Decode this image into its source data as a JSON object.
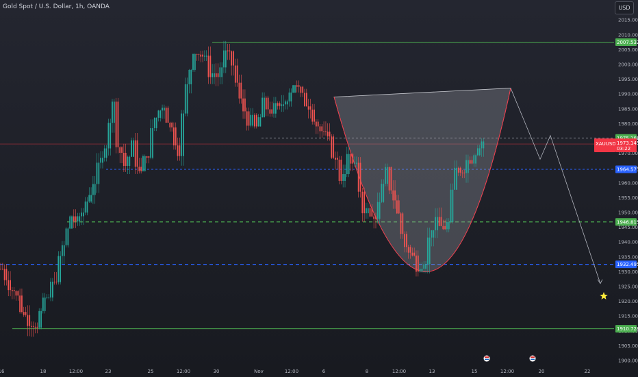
{
  "header": {
    "symbol_title": "Gold Spot / U.S. Dollar, 1h, OANDA",
    "currency_button": "USD"
  },
  "colors": {
    "background": "#1c1e26",
    "candle_up": "#26a69a",
    "candle_down": "#ef5350",
    "green_line": "#4caf50",
    "blue_dash": "#2962ff",
    "green_dash": "#4caf50",
    "red_price": "#f23645",
    "fill_shape": "#9598a1"
  },
  "chart_data": {
    "type": "line",
    "title": "Gold Spot / U.S. Dollar, 1h, OANDA",
    "y_range": [
      1898,
      2016
    ],
    "y_ticks": [
      1900,
      1905,
      1910,
      1915,
      1920,
      1925,
      1930,
      1935,
      1940,
      1945,
      1950,
      1955,
      1960,
      1965,
      1970,
      1975,
      1980,
      1985,
      1990,
      1995,
      2000,
      2005,
      2010,
      2015
    ],
    "x_ticks": [
      "16",
      "18",
      "12:00",
      "23",
      "25",
      "12:00",
      "30",
      "Nov",
      "12:00",
      "6",
      "8",
      "12:00",
      "13",
      "15",
      "12:00",
      "20",
      "22"
    ],
    "price_path": [
      [
        0,
        1931
      ],
      [
        3,
        1924
      ],
      [
        6,
        1915
      ],
      [
        9,
        1913
      ],
      [
        12,
        1921
      ],
      [
        15,
        1933
      ],
      [
        18,
        1949
      ],
      [
        20,
        1946
      ],
      [
        22,
        1954
      ],
      [
        24,
        1961
      ],
      [
        26,
        1967
      ],
      [
        28,
        1982
      ],
      [
        29,
        1986
      ],
      [
        30,
        1975
      ],
      [
        32,
        1966
      ],
      [
        34,
        1972
      ],
      [
        36,
        1963
      ],
      [
        38,
        1971
      ],
      [
        40,
        1982
      ],
      [
        42,
        1987
      ],
      [
        44,
        1978
      ],
      [
        46,
        1972
      ],
      [
        48,
        1992
      ],
      [
        50,
        2006
      ],
      [
        52,
        2003
      ],
      [
        54,
        1998
      ],
      [
        56,
        1996
      ],
      [
        58,
        2003
      ],
      [
        60,
        2000
      ],
      [
        62,
        1987
      ],
      [
        64,
        1982
      ],
      [
        66,
        1978
      ],
      [
        68,
        1986
      ],
      [
        70,
        1985
      ],
      [
        72,
        1984
      ],
      [
        74,
        1990
      ],
      [
        76,
        1994
      ],
      [
        78,
        1988
      ],
      [
        80,
        1987
      ],
      [
        82,
        1980
      ],
      [
        84,
        1975
      ],
      [
        86,
        1971
      ],
      [
        88,
        1962
      ],
      [
        90,
        1968
      ],
      [
        92,
        1964
      ],
      [
        94,
        1952
      ],
      [
        96,
        1948
      ],
      [
        98,
        1952
      ],
      [
        100,
        1963
      ],
      [
        102,
        1955
      ],
      [
        104,
        1943
      ],
      [
        106,
        1936
      ],
      [
        108,
        1933
      ],
      [
        110,
        1935
      ],
      [
        112,
        1946
      ],
      [
        114,
        1945
      ],
      [
        116,
        1946
      ],
      [
        118,
        1964
      ],
      [
        120,
        1966
      ],
      [
        122,
        1969
      ],
      [
        124,
        1974
      ],
      [
        126,
        1975
      ]
    ],
    "levels": [
      {
        "label": "2007.532",
        "value": 2007.532,
        "style": "green-solid"
      },
      {
        "label": "1975.168",
        "value": 1975.168,
        "style": "green-tag"
      },
      {
        "label": "1964.571",
        "value": 1964.571,
        "style": "blue-dashed"
      },
      {
        "label": "1946.815",
        "value": 1946.815,
        "style": "green-dashed"
      },
      {
        "label": "1932.495",
        "value": 1932.495,
        "style": "blue-dashed"
      },
      {
        "label": "1910.728",
        "value": 1910.728,
        "style": "green-solid"
      }
    ],
    "current_price": {
      "label": "1973.145",
      "ticker": "XAUUSD",
      "countdown": "03:22",
      "value": 1973.145
    },
    "cup_pattern": {
      "rim_left": 1989,
      "rim_right": 1992,
      "bottom": 1930
    },
    "projection": [
      [
        1992
      ],
      [
        1968
      ],
      [
        1976
      ],
      [
        1926
      ]
    ]
  }
}
